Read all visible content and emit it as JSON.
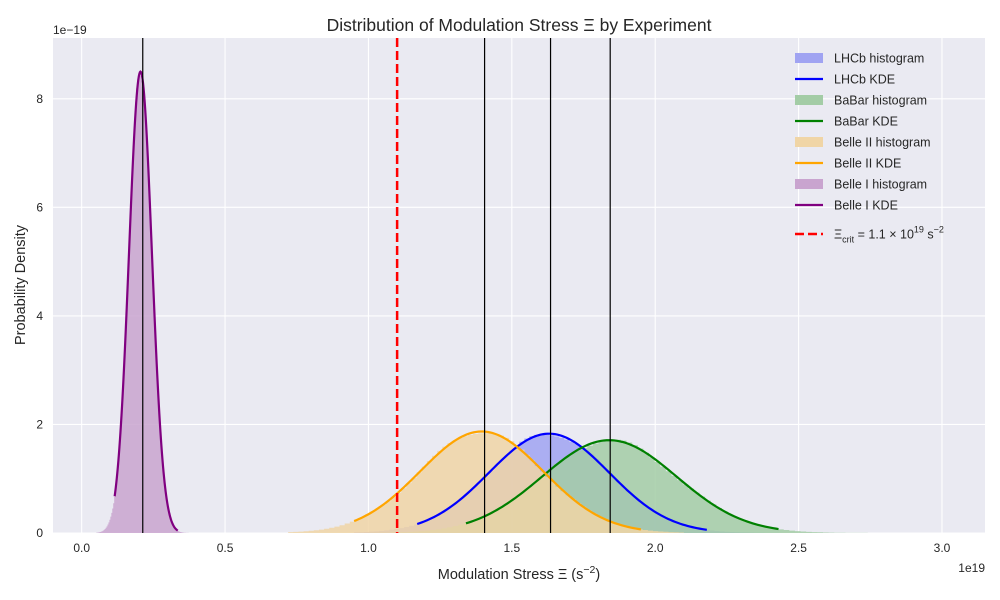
{
  "chart_data": {
    "type": "area",
    "title": "Distribution of Modulation Stress Ξ by Experiment",
    "xlabel": "Modulation Stress Ξ (s",
    "xlabel_sup": "−2",
    "xlabel_tail": ")",
    "ylabel": "Probability Density",
    "x_offset_label": "1e19",
    "y_offset_label": "1e−19",
    "xlim": [
      -0.1,
      3.15
    ],
    "ylim": [
      0,
      9.12
    ],
    "x_ticks": [
      0.0,
      0.5,
      1.0,
      1.5,
      2.0,
      2.5,
      3.0
    ],
    "x_tick_labels": [
      "0.0",
      "0.5",
      "1.0",
      "1.5",
      "2.0",
      "2.5",
      "3.0"
    ],
    "y_ticks": [
      0,
      2,
      4,
      6,
      8
    ],
    "y_tick_labels": [
      "0",
      "2",
      "4",
      "6",
      "8"
    ],
    "grid": true,
    "legend_position": "top-right",
    "series": [
      {
        "name": "LHCb",
        "hist_label": "LHCb histogram",
        "kde_label": "LHCb KDE",
        "hist_color": "#a0a3f2",
        "kde_color": "#0000ff",
        "mean": 1.63,
        "sigma": 0.21,
        "peak": 1.83,
        "hist_range": [
          0.95,
          2.8
        ],
        "kde_range": [
          1.17,
          2.18
        ],
        "median_line": 1.635
      },
      {
        "name": "BaBar",
        "hist_label": "BaBar histogram",
        "kde_label": "BaBar KDE",
        "hist_color": "#a3cca6",
        "kde_color": "#008000",
        "mean": 1.84,
        "sigma": 0.235,
        "peak": 1.71,
        "hist_range": [
          1.0,
          2.82
        ],
        "kde_range": [
          1.34,
          2.43
        ],
        "median_line": 1.843
      },
      {
        "name": "Belle II",
        "hist_label": "Belle II histogram",
        "kde_label": "Belle II KDE",
        "hist_color": "#f0d5a6",
        "kde_color": "#ffa500",
        "mean": 1.395,
        "sigma": 0.215,
        "peak": 1.87,
        "hist_range": [
          0.72,
          2.1
        ],
        "kde_range": [
          0.95,
          1.95
        ],
        "median_line": 1.405
      },
      {
        "name": "Belle I",
        "hist_label": "Belle I histogram",
        "kde_label": "Belle I KDE",
        "hist_color": "#c9a4cf",
        "kde_color": "#800080",
        "mean": 0.205,
        "sigma": 0.04,
        "peak": 8.5,
        "hist_range": [
          0.05,
          0.45
        ],
        "kde_range": [
          0.115,
          0.335
        ],
        "median_line": 0.213
      }
    ],
    "threshold": {
      "value": 1.1,
      "label_prefix": "Ξ",
      "label_sub": "crit",
      "label_mid": " = 1.1 × 10",
      "label_sup": "19",
      "label_unit": " s",
      "label_unit_sup": "−2",
      "color": "#ff0000"
    },
    "legend_order": [
      "LHCb histogram",
      "LHCb KDE",
      "BaBar histogram",
      "BaBar KDE",
      "Belle II histogram",
      "Belle II KDE",
      "Belle I histogram",
      "Belle I KDE",
      "threshold"
    ]
  }
}
